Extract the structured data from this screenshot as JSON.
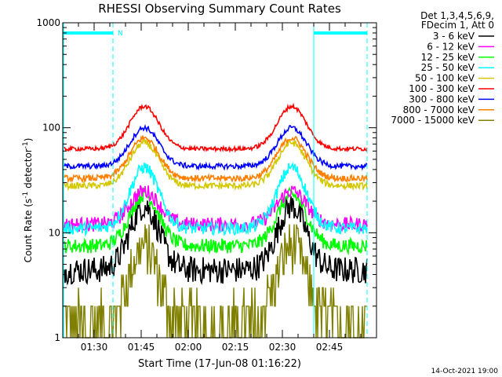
{
  "chart_data": {
    "type": "line",
    "title": "RHESSI Observing Summary Count Rates",
    "xlabel": "Start Time (17-Jun-08 01:16:22)",
    "ylabel_parts": [
      "Count Rate (s",
      "-1",
      " detector",
      "-1",
      ")"
    ],
    "ylog": true,
    "ylim": [
      1,
      1000
    ],
    "xlim_minutes": [
      80,
      180
    ],
    "y_ticks": [
      {
        "value": 1,
        "label": "1"
      },
      {
        "value": 10,
        "label": "10"
      },
      {
        "value": 100,
        "label": "100"
      },
      {
        "value": 1000,
        "label": "1000"
      }
    ],
    "x_ticks": [
      {
        "value": 90,
        "label": "01:30"
      },
      {
        "value": 105,
        "label": "01:45"
      },
      {
        "value": 120,
        "label": "02:00"
      },
      {
        "value": 135,
        "label": "02:15"
      },
      {
        "value": 150,
        "label": "02:30"
      },
      {
        "value": 165,
        "label": "02:45"
      }
    ],
    "legend_header": [
      "Det 1,3,4,5,6,9,",
      "FDecim 1, Att 0"
    ],
    "legend_position": "top-right outside plot",
    "peaks_minutes": [
      106,
      153
    ],
    "series": [
      {
        "name": "3 - 6 keV",
        "color": "#000000",
        "base": 4.4,
        "peak": 18,
        "noise": 0.13
      },
      {
        "name": "6 - 12 keV",
        "color": "#ff00ff",
        "base": 12,
        "peak": 25,
        "noise": 0.07
      },
      {
        "name": "12 - 25 keV",
        "color": "#00ff00",
        "base": 7.5,
        "peak": 23,
        "noise": 0.07
      },
      {
        "name": "25 - 50 keV",
        "color": "#00ffff",
        "base": 11,
        "peak": 42,
        "noise": 0.06
      },
      {
        "name": "50 - 100 keV",
        "color": "#d4c800",
        "base": 28,
        "peak": 72,
        "noise": 0.03
      },
      {
        "name": "100 - 300 keV",
        "color": "#ff0000",
        "base": 63,
        "peak": 160,
        "noise": 0.02
      },
      {
        "name": "300 - 800 keV",
        "color": "#0000ff",
        "base": 43,
        "peak": 100,
        "noise": 0.025
      },
      {
        "name": "800 - 7000 keV",
        "color": "#ff8000",
        "base": 33,
        "peak": 80,
        "noise": 0.03
      },
      {
        "name": "7000 - 15000 keV",
        "color": "#808000",
        "base": 1.5,
        "peak": 7.5,
        "noise": 0.25
      }
    ],
    "annotations": {
      "night_marker_label": "N",
      "cyan_bars": [
        [
          80,
          96
        ],
        [
          160,
          177
        ]
      ],
      "vertical_dashed_minutes": [
        96,
        177
      ],
      "vertical_solid_minutes": [
        80,
        160
      ]
    }
  },
  "footer": {
    "timestamp": "14-Oct-2021 19:00"
  }
}
